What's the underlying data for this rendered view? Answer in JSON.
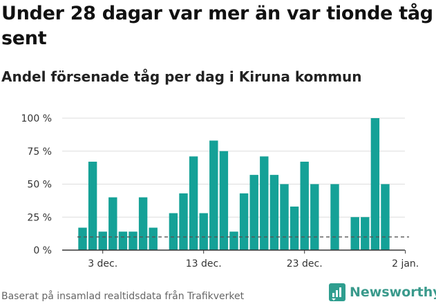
{
  "title": "Under 28 dagar var mer än var tionde tåg sent",
  "subtitle": "Andel försenade tåg per dag i Kiruna kommun",
  "footer": "Baserat på insamlad realtidsdata från Trafikverket",
  "brand": "Newsworthy",
  "colors": {
    "bar": "#15a197",
    "reference_line": "#555555",
    "grid": "#dddddd",
    "axis": "#333333"
  },
  "chart_data": {
    "type": "bar",
    "title": "Andel försenade tåg per dag i Kiruna kommun",
    "xlabel": "",
    "ylabel": "",
    "x_unit": "day index (0 = 1 dec.)",
    "categories": [
      "1 dec.",
      "2 dec.",
      "3 dec.",
      "4 dec.",
      "5 dec.",
      "6 dec.",
      "7 dec.",
      "8 dec.",
      "9 dec.",
      "10 dec.",
      "11 dec.",
      "12 dec.",
      "13 dec.",
      "14 dec.",
      "15 dec.",
      "16 dec.",
      "17 dec.",
      "18 dec.",
      "19 dec.",
      "20 dec.",
      "21 dec.",
      "22 dec.",
      "23 dec.",
      "24 dec.",
      "25 dec.",
      "26 dec.",
      "27 dec.",
      "28 dec.",
      "29 dec.",
      "30 dec.",
      "31 dec."
    ],
    "values": [
      17,
      67,
      14,
      40,
      14,
      14,
      40,
      17,
      null,
      28,
      43,
      71,
      28,
      83,
      75,
      14,
      43,
      57,
      71,
      57,
      50,
      33,
      67,
      50,
      null,
      50,
      null,
      25,
      25,
      100,
      50
    ],
    "reference_line": {
      "value": 10,
      "style": "dashed"
    },
    "ylim": [
      0,
      100
    ],
    "y_ticks": [
      {
        "value": 0,
        "label": "0 %"
      },
      {
        "value": 25,
        "label": "25 %"
      },
      {
        "value": 50,
        "label": "50 %"
      },
      {
        "value": 75,
        "label": "75 %"
      },
      {
        "value": 100,
        "label": "100 %"
      }
    ],
    "x_ticks": [
      {
        "index": 2,
        "label": "3 dec."
      },
      {
        "index": 12,
        "label": "13 dec."
      },
      {
        "index": 22,
        "label": "23 dec."
      },
      {
        "index": 32,
        "label": "2 jan."
      }
    ],
    "grid": true,
    "legend": "none"
  }
}
